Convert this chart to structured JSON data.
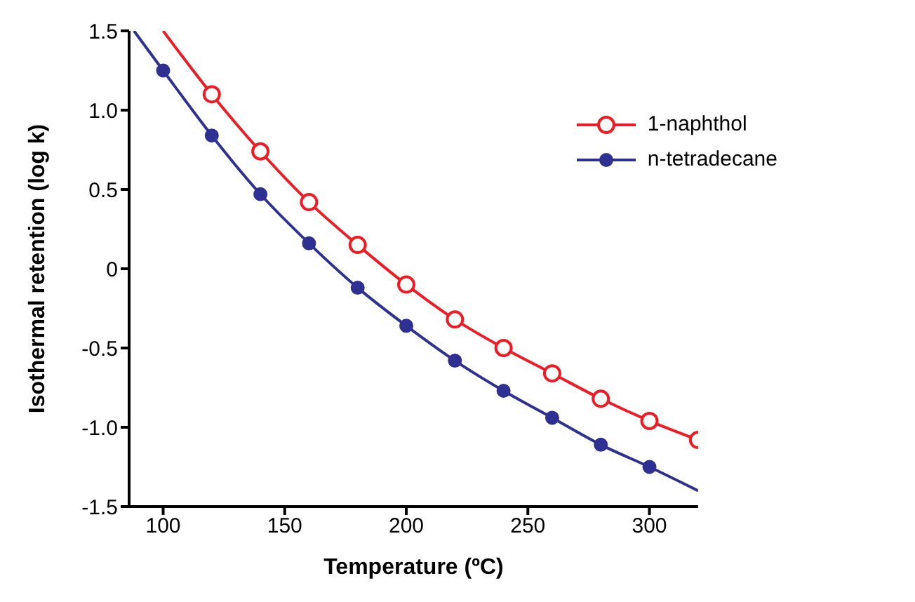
{
  "chart_data": {
    "type": "scatter",
    "xlabel": "Temperature (ºC)",
    "ylabel": "Isothermal retention (log k)",
    "xlim": [
      86,
      320
    ],
    "xticks": [
      100,
      150,
      200,
      250,
      300
    ],
    "ylim": [
      -1.5,
      1.5
    ],
    "yticks": [
      -1.5,
      {
        "value": -1,
        "label": "-1.0"
      },
      -0.5,
      0,
      0.5,
      {
        "value": 1,
        "label": "1.0"
      },
      1.5
    ],
    "grid": false,
    "legend": "top right",
    "marker": "circle",
    "series": [
      {
        "name": "1-naphthol",
        "color": "#ee1c25",
        "x": [
          120,
          140,
          160,
          180,
          200,
          220,
          240,
          260,
          280,
          300,
          320
        ],
        "values": [
          1.1,
          0.74,
          0.42,
          0.15,
          -0.1,
          -0.32,
          -0.5,
          -0.66,
          -0.82,
          -0.96,
          -1.08
        ]
      },
      {
        "name": "n-tetradecane",
        "color": "#2e3192",
        "x": [
          100,
          120,
          140,
          160,
          180,
          200,
          220,
          240,
          260,
          280,
          300
        ],
        "values": [
          1.25,
          0.84,
          0.47,
          0.16,
          -0.12,
          -0.36,
          -0.58,
          -0.77,
          -0.94,
          -1.11,
          -1.25
        ]
      },
      {
        "type": "line",
        "marker": "none",
        "color": "#ee1c25",
        "x": [
          100,
          120,
          140,
          160,
          180,
          200,
          220,
          240,
          260,
          280,
          300,
          320
        ],
        "values": [
          1.5,
          1.1,
          0.74,
          0.42,
          0.15,
          -0.1,
          -0.32,
          -0.5,
          -0.66,
          -0.82,
          -0.96,
          -1.08
        ]
      },
      {
        "type": "line",
        "marker": "none",
        "color": "#2e3192",
        "x": [
          88,
          100,
          120,
          140,
          160,
          180,
          200,
          220,
          240,
          260,
          280,
          300,
          320
        ],
        "values": [
          1.5,
          1.25,
          0.84,
          0.47,
          0.16,
          -0.12,
          -0.36,
          -0.58,
          -0.77,
          -0.94,
          -1.11,
          -1.25,
          -1.4
        ]
      }
    ]
  }
}
